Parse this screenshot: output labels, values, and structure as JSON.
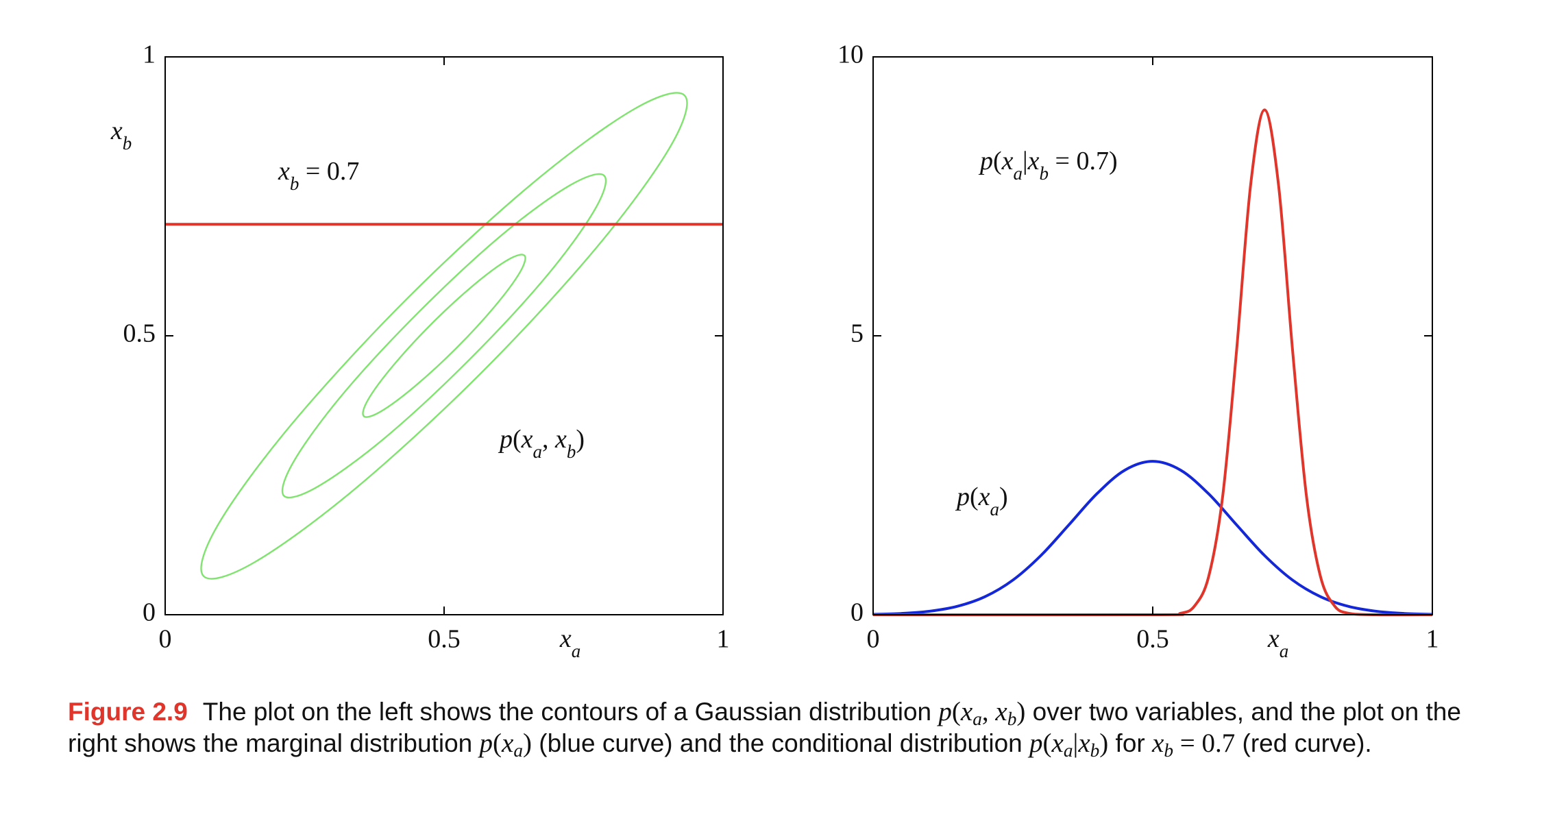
{
  "chart_data": [
    {
      "type": "contour",
      "x_label": "x_a",
      "y_label": "x_b",
      "xlim": [
        0,
        1
      ],
      "ylim": [
        0,
        1
      ],
      "xticks": [
        0,
        0.5,
        1
      ],
      "yticks": [
        0,
        0.5,
        1
      ],
      "annotation": "p(x_a, x_b)",
      "series": [
        {
          "color": "#80e36f",
          "closed": true,
          "x": [
            0.931,
            0.84,
            0.658,
            0.434,
            0.227,
            0.094,
            0.069,
            0.16,
            0.342,
            0.567,
            0.773,
            0.906
          ],
          "values": [
            0.931,
            0.906,
            0.773,
            0.567,
            0.342,
            0.16,
            0.069,
            0.094,
            0.227,
            0.434,
            0.658,
            0.84
          ]
        },
        {
          "color": "#80e36f",
          "closed": true,
          "x": [
            0.787,
            0.726,
            0.605,
            0.456,
            0.318,
            0.23,
            0.213,
            0.274,
            0.395,
            0.544,
            0.682,
            0.77
          ],
          "values": [
            0.787,
            0.77,
            0.682,
            0.544,
            0.395,
            0.274,
            0.213,
            0.23,
            0.318,
            0.456,
            0.605,
            0.726
          ]
        },
        {
          "color": "#80e36f",
          "closed": true,
          "x": [
            0.644,
            0.614,
            0.553,
            0.478,
            0.409,
            0.364,
            0.356,
            0.386,
            0.447,
            0.522,
            0.591,
            0.636
          ],
          "values": [
            0.644,
            0.636,
            0.591,
            0.522,
            0.447,
            0.386,
            0.356,
            0.364,
            0.409,
            0.478,
            0.553,
            0.614
          ]
        },
        {
          "name": "x_b = 0.7",
          "color": "#e0352b",
          "x": [
            0,
            1
          ],
          "values": [
            0.7,
            0.7
          ]
        }
      ]
    },
    {
      "type": "line",
      "x_label": "x_a",
      "xlim": [
        0,
        1
      ],
      "ylim": [
        0,
        10
      ],
      "xticks": [
        0,
        0.5,
        1
      ],
      "yticks": [
        0,
        5,
        10
      ],
      "series": [
        {
          "name": "p(x_a)",
          "color": "#1428d8",
          "x": [
            0,
            0.05,
            0.1,
            0.15,
            0.2,
            0.25,
            0.3,
            0.35,
            0.4,
            0.45,
            0.5,
            0.55,
            0.6,
            0.65,
            0.7,
            0.75,
            0.8,
            0.85,
            0.9,
            0.95,
            1
          ],
          "values": [
            0.007,
            0.022,
            0.061,
            0.149,
            0.323,
            0.621,
            1.061,
            1.61,
            2.167,
            2.591,
            2.75,
            2.591,
            2.167,
            1.61,
            1.061,
            0.621,
            0.323,
            0.149,
            0.061,
            0.022,
            0.007
          ]
        },
        {
          "name": "p(x_a|x_b = 0.7)",
          "color": "#e0352b",
          "x": [
            0,
            0.5,
            0.55,
            0.575,
            0.6,
            0.625,
            0.65,
            0.675,
            0.7,
            0.725,
            0.75,
            0.775,
            0.8,
            0.825,
            0.85,
            0.9,
            1
          ],
          "values": [
            0,
            0,
            0.027,
            0.16,
            0.684,
            2.117,
            4.745,
            7.7,
            9.05,
            7.7,
            4.745,
            2.117,
            0.684,
            0.16,
            0.027,
            0,
            0
          ]
        }
      ]
    }
  ],
  "caption": {
    "label": "Figure 2.9",
    "parts": [
      {
        "text": "The plot on the left shows the contours of a Gaussian distribution "
      },
      {
        "math": "p(x_a, x_b)"
      },
      {
        "text": " over two variables, and the plot on the right shows the marginal distribution "
      },
      {
        "math": "p(x_a)"
      },
      {
        "text": " (blue curve) and the conditional distribution "
      },
      {
        "math": "p(x_a|x_b)"
      },
      {
        "text": " for "
      },
      {
        "math": "x_b = 0.7"
      },
      {
        "text": " (red curve)."
      }
    ]
  }
}
